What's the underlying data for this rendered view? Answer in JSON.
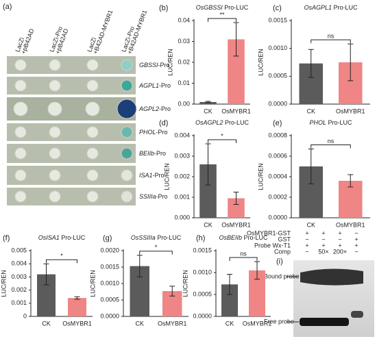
{
  "panels": {
    "a": {
      "label": "(a)",
      "columns": [
        [
          "LacZi",
          "+pB42AD"
        ],
        [
          "LacZi-Pro",
          "+pB42AD"
        ],
        [
          "LacZi",
          "+B42AD-MYBR1"
        ],
        [
          "LacZi-Pro",
          "+B42AD-MYBR1"
        ]
      ],
      "rows": [
        {
          "gene": "GBSSI",
          "text": "-Pro"
        },
        {
          "gene": "AGPL1",
          "text": "-Pro"
        },
        {
          "gene": "AGPL2",
          "text": "-Pro"
        },
        {
          "gene": "PHOL",
          "text": "-Pro"
        },
        {
          "gene": "BEIIb",
          "text": "-Pro"
        },
        {
          "gene": "ISA1",
          "text": "-Pro"
        },
        {
          "gene": "SSIIIa",
          "text": "-Pro"
        }
      ]
    },
    "i": {
      "label": "(i)",
      "rows": [
        {
          "name": "OsMYBR1-GST",
          "marks": [
            "+",
            "+",
            "+",
            "−"
          ]
        },
        {
          "name": "GST",
          "marks": [
            "−",
            "−",
            "−",
            "+"
          ]
        },
        {
          "name": "Probe Wx-T1",
          "marks": [
            "+",
            "+",
            "+",
            "+"
          ]
        },
        {
          "name": "Comp",
          "marks": [
            "−",
            "50×",
            "200×",
            "−"
          ]
        }
      ],
      "bands": [
        "Bound probe",
        "Free probe"
      ]
    }
  },
  "chart_data": [
    {
      "type": "bar",
      "panel": "(b)",
      "title": {
        "gene": "OsGBSSI",
        "text": "Pro-LUC"
      },
      "ylabel": "LUC/REN",
      "categories": [
        "CK",
        "OsMYBR1"
      ],
      "values": [
        0.001,
        0.031
      ],
      "errors": [
        0.0003,
        0.008
      ],
      "colors": [
        "#5b5b5b",
        "#ef8585"
      ],
      "annotation": "**",
      "ylim": [
        0,
        0.04
      ],
      "yticks": [
        {
          "value": 0,
          "label": "0.00"
        },
        {
          "value": 0.01,
          "label": "0.01"
        },
        {
          "value": 0.02,
          "label": "0.02"
        },
        {
          "value": 0.03,
          "label": "0.03"
        },
        {
          "value": 0.04,
          "label": "0.04"
        }
      ]
    },
    {
      "type": "bar",
      "panel": "(c)",
      "title": {
        "gene": "OsAGPL1",
        "text": "Pro-LUC"
      },
      "ylabel": "LUC/REN",
      "categories": [
        "CK",
        "OsMYBR1"
      ],
      "values": [
        0.00073,
        0.00075
      ],
      "errors": [
        0.00025,
        0.00033
      ],
      "colors": [
        "#5b5b5b",
        "#ef8585"
      ],
      "annotation": "ns",
      "ylim": [
        0,
        0.0015
      ],
      "yticks": [
        {
          "value": 0,
          "label": "0.0000"
        },
        {
          "value": 0.0005,
          "label": "0.0005"
        },
        {
          "value": 0.001,
          "label": "0.0010"
        },
        {
          "value": 0.0015,
          "label": "0.0015"
        }
      ]
    },
    {
      "type": "bar",
      "panel": "(d)",
      "title": {
        "gene": "OsAGPL2",
        "text": "Pro-LUC"
      },
      "ylabel": "LUC/REN",
      "categories": [
        "CK",
        "OsMYBR1"
      ],
      "values": [
        0.0026,
        0.00095
      ],
      "errors": [
        0.001,
        0.0003
      ],
      "colors": [
        "#5b5b5b",
        "#ef8585"
      ],
      "annotation": "*",
      "ylim": [
        0,
        0.004
      ],
      "yticks": [
        {
          "value": 0,
          "label": "0.000"
        },
        0.001,
        0.002,
        0.003,
        0.004
      ]
    },
    {
      "type": "bar",
      "panel": "(e)",
      "title": {
        "gene": "PHOL",
        "text": "Pro-LUC"
      },
      "ylabel": "LUC/REN",
      "categories": [
        "CK",
        "OsMYBR1"
      ],
      "values": [
        0.0005,
        0.00036
      ],
      "errors": [
        0.00017,
        6e-05
      ],
      "colors": [
        "#5b5b5b",
        "#ef8585"
      ],
      "annotation": "ns",
      "ylim": [
        0,
        0.0008
      ],
      "yticks": [
        {
          "value": 0,
          "label": "0.0000"
        },
        0.0002,
        0.0004,
        0.0006,
        0.0008
      ]
    },
    {
      "type": "bar",
      "panel": "(f)",
      "title": {
        "gene": "OsISA1",
        "text": "Pro-LUC"
      },
      "ylabel": "LUC/REN",
      "categories": [
        "CK",
        "OsMYBR1"
      ],
      "values": [
        0.0032,
        0.0014
      ],
      "errors": [
        0.0008,
        0.0001
      ],
      "colors": [
        "#5b5b5b",
        "#ef8585"
      ],
      "annotation": "*",
      "ylim": [
        0,
        0.005
      ],
      "yticks": [
        0,
        0.001,
        0.002,
        0.003,
        0.004,
        0.005
      ]
    },
    {
      "type": "bar",
      "panel": "(g)",
      "title": {
        "gene": "OsSSIIIa",
        "text": "Pro-LUC"
      },
      "ylabel": "LUC/REN",
      "categories": [
        "CK",
        "OsMYBR1"
      ],
      "values": [
        0.00153,
        0.00077
      ],
      "errors": [
        0.00033,
        0.00015
      ],
      "colors": [
        "#5b5b5b",
        "#ef8585"
      ],
      "annotation": "*",
      "ylim": [
        0,
        0.002
      ],
      "yticks": [
        {
          "value": 0,
          "label": "0.0000"
        },
        0.0005,
        {
          "value": 0.001,
          "label": "0.0010"
        },
        0.0015,
        {
          "value": 0.002,
          "label": "0.0020"
        }
      ]
    },
    {
      "type": "bar",
      "panel": "(h)",
      "title": {
        "gene": "OsBEIIb",
        "text": "Pro-LUC"
      },
      "ylabel": "LUC/REN",
      "categories": [
        "CK",
        "OsMYBR1"
      ],
      "values": [
        0.00073,
        0.00105
      ],
      "errors": [
        0.00023,
        0.0002
      ],
      "colors": [
        "#5b5b5b",
        "#ef8585"
      ],
      "annotation": "ns",
      "ylim": [
        0,
        0.0015
      ],
      "yticks": [
        {
          "value": 0,
          "label": "0.0000"
        },
        {
          "value": 0.0005,
          "label": "0.0005"
        },
        {
          "value": 0.001,
          "label": "0.0010"
        },
        {
          "value": 0.0015,
          "label": "0.0015"
        }
      ]
    }
  ]
}
